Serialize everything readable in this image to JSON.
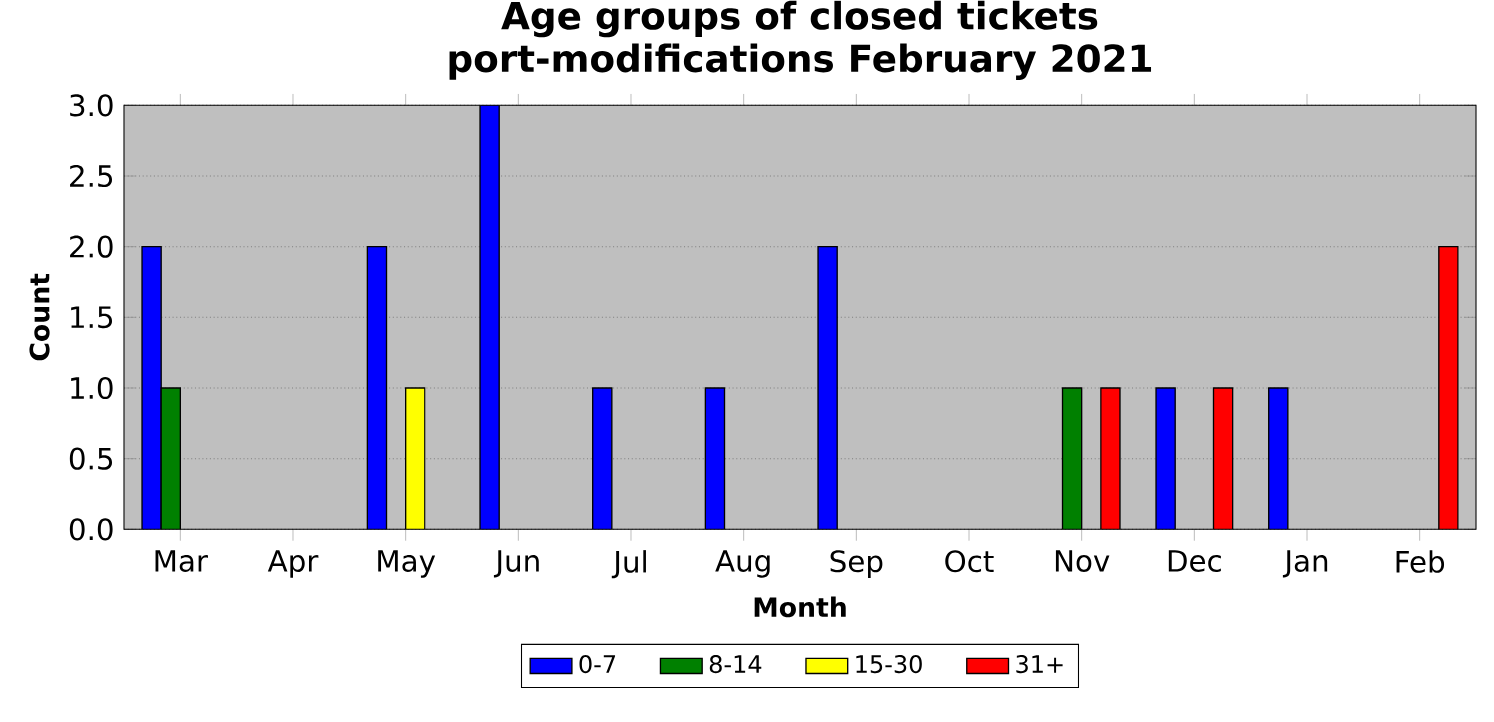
{
  "chart_data": {
    "type": "bar",
    "title": "Age groups of closed tickets",
    "subtitle": "port-modifications February 2021",
    "xlabel": "Month",
    "ylabel": "Count",
    "categories": [
      "Mar",
      "Apr",
      "May",
      "Jun",
      "Jul",
      "Aug",
      "Sep",
      "Oct",
      "Nov",
      "Dec",
      "Jan",
      "Feb"
    ],
    "series": [
      {
        "name": "0-7",
        "color": "#0000ff",
        "values": [
          2,
          0,
          2,
          3,
          1,
          1,
          2,
          0,
          0,
          1,
          1,
          0
        ]
      },
      {
        "name": "8-14",
        "color": "#008000",
        "values": [
          1,
          0,
          0,
          0,
          0,
          0,
          0,
          0,
          1,
          0,
          0,
          0
        ]
      },
      {
        "name": "15-30",
        "color": "#ffff00",
        "values": [
          0,
          0,
          1,
          0,
          0,
          0,
          0,
          0,
          0,
          0,
          0,
          0
        ]
      },
      {
        "name": "31+",
        "color": "#ff0000",
        "values": [
          0,
          0,
          0,
          0,
          0,
          0,
          0,
          0,
          1,
          1,
          0,
          2
        ]
      }
    ],
    "ylim": [
      0,
      3
    ],
    "yticks": [
      {
        "value": 0,
        "label": "0.0"
      },
      {
        "value": 0.5,
        "label": "0.5"
      },
      {
        "value": 1,
        "label": "1.0"
      },
      {
        "value": 1.5,
        "label": "1.5"
      },
      {
        "value": 2,
        "label": "2.0"
      },
      {
        "value": 2.5,
        "label": "2.5"
      },
      {
        "value": 3,
        "label": "3.0"
      }
    ],
    "grid": "y",
    "legend": "bottom"
  }
}
